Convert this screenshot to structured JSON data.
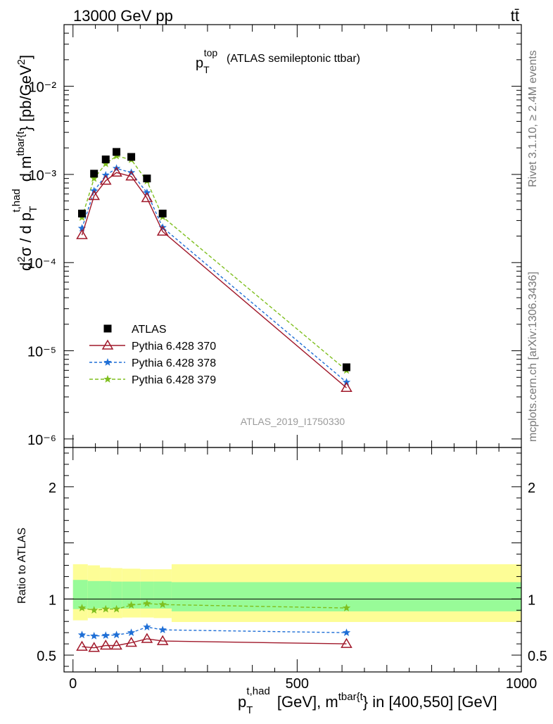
{
  "header": {
    "left": "13000 GeV pp",
    "right": "tt̄"
  },
  "side_labels": {
    "rivet": "Rivet 3.1.10, ≥ 2.4M events",
    "mcplots": "mcplots.cern.ch [arXiv:1306.3436]"
  },
  "colors": {
    "atlas": "#000000",
    "p370": "#a0182a",
    "p378": "#1f6fd6",
    "p379": "#7fbf1f",
    "band_inner": "#98fb98",
    "band_outer": "#fdfd96"
  },
  "chart_data": [
    {
      "type": "line",
      "title": "(ATLAS semileptonic ttbar)",
      "title_var": "p_T^top",
      "analysis_id": "ATLAS_2019_I1750330",
      "ylabel": "d²σ / d p_T^{t,had} d m^{tbar{t}} [pb/GeV²]",
      "yscale": "log",
      "ylim": [
        8e-07,
        0.05
      ],
      "xlim": [
        -20,
        1000
      ],
      "y_tick_labels": [
        "10⁻⁶",
        "10⁻⁵",
        "10⁻⁴",
        "10⁻³",
        "10⁻²"
      ],
      "legend_position": "left-middle",
      "x": [
        20,
        47,
        73,
        97,
        130,
        165,
        200,
        610
      ],
      "series": [
        {
          "name": "ATLAS",
          "marker": "square",
          "values": [
            0.00036,
            0.00102,
            0.00148,
            0.0018,
            0.00158,
            0.0009,
            0.00036,
            6.5e-06
          ]
        },
        {
          "name": "Pythia 6.428 370",
          "marker": "triangle",
          "values": [
            0.000205,
            0.00057,
            0.00085,
            0.00105,
            0.00095,
            0.00054,
            0.000225,
            3.8e-06
          ]
        },
        {
          "name": "Pythia 6.428 378",
          "marker": "star",
          "values": [
            0.000245,
            0.00065,
            0.00098,
            0.00117,
            0.00105,
            0.00062,
            0.00025,
            4.4e-06
          ]
        },
        {
          "name": "Pythia 6.428 379",
          "marker": "star",
          "values": [
            0.000325,
            0.0009,
            0.00132,
            0.00162,
            0.00147,
            0.00084,
            0.00033,
            6e-06
          ]
        }
      ]
    },
    {
      "type": "line",
      "ylabel": "Ratio to ATLAS",
      "xlabel": "p_T^{t,had} [GeV], m^{tbar{t}} in [400,550] [GeV]",
      "ylim": [
        0.35,
        2.35
      ],
      "xlim": [
        -20,
        1000
      ],
      "y_tick_labels": [
        "0.5",
        "1",
        "2"
      ],
      "x_tick_labels": [
        "0",
        "500",
        "1000"
      ],
      "x": [
        20,
        47,
        73,
        97,
        130,
        165,
        200,
        610
      ],
      "series": [
        {
          "name": "Pythia 6.428 370",
          "values": [
            0.575,
            0.565,
            0.585,
            0.585,
            0.61,
            0.645,
            0.625,
            0.6
          ]
        },
        {
          "name": "Pythia 6.428 378",
          "values": [
            0.68,
            0.67,
            0.675,
            0.68,
            0.7,
            0.75,
            0.725,
            0.7
          ]
        },
        {
          "name": "Pythia 6.428 379",
          "values": [
            0.92,
            0.9,
            0.91,
            0.91,
            0.945,
            0.96,
            0.95,
            0.92
          ]
        }
      ],
      "uncertainty_bands": [
        {
          "x0": 0,
          "x1": 33,
          "inner": [
            0.91,
            1.17
          ],
          "outer": [
            0.81,
            1.31
          ]
        },
        {
          "x0": 33,
          "x1": 60,
          "inner": [
            0.915,
            1.16
          ],
          "outer": [
            0.83,
            1.3
          ]
        },
        {
          "x0": 60,
          "x1": 85,
          "inner": [
            0.915,
            1.16
          ],
          "outer": [
            0.83,
            1.28
          ]
        },
        {
          "x0": 85,
          "x1": 110,
          "inner": [
            0.915,
            1.155
          ],
          "outer": [
            0.83,
            1.275
          ]
        },
        {
          "x0": 110,
          "x1": 150,
          "inner": [
            0.915,
            1.155
          ],
          "outer": [
            0.835,
            1.27
          ]
        },
        {
          "x0": 150,
          "x1": 180,
          "inner": [
            0.915,
            1.155
          ],
          "outer": [
            0.835,
            1.265
          ]
        },
        {
          "x0": 180,
          "x1": 220,
          "inner": [
            0.915,
            1.155
          ],
          "outer": [
            0.83,
            1.265
          ]
        },
        {
          "x0": 220,
          "x1": 1000,
          "inner": [
            0.89,
            1.15
          ],
          "outer": [
            0.795,
            1.31
          ]
        }
      ]
    }
  ]
}
